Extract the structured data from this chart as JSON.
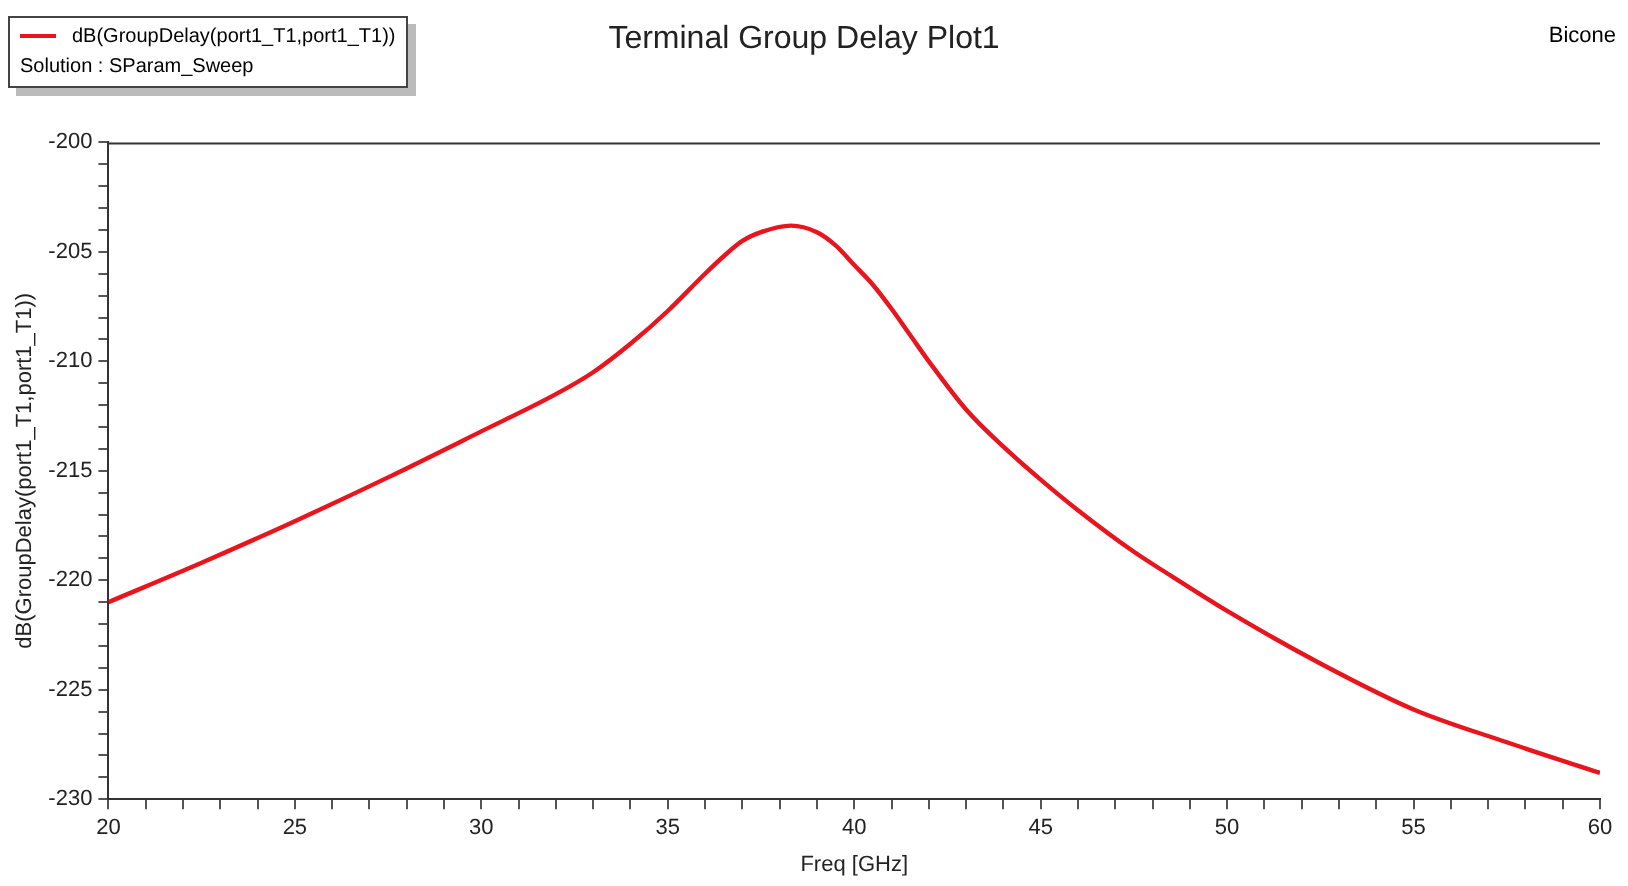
{
  "chart_data": {
    "type": "line",
    "title": "Terminal Group Delay Plot1",
    "xlabel": "Freq [GHz]",
    "ylabel": "dB(GroupDelay(port1_T1,port1_T1))",
    "annotations": [
      "Solution : SParam_Sweep",
      "Bicone"
    ],
    "legend": "top left",
    "grid": false,
    "marker": "none",
    "line_style": "solid",
    "xlim": [
      20,
      60
    ],
    "ylim": [
      -230,
      -200
    ],
    "xticks": [
      20,
      {
        "value": 21,
        "label": null
      },
      {
        "value": 22,
        "label": null
      },
      {
        "value": 23,
        "label": null
      },
      {
        "value": 24,
        "label": null
      },
      25,
      {
        "value": 26,
        "label": null
      },
      {
        "value": 27,
        "label": null
      },
      {
        "value": 28,
        "label": null
      },
      {
        "value": 29,
        "label": null
      },
      30,
      {
        "value": 31,
        "label": null
      },
      {
        "value": 32,
        "label": null
      },
      {
        "value": 33,
        "label": null
      },
      {
        "value": 34,
        "label": null
      },
      35,
      {
        "value": 36,
        "label": null
      },
      {
        "value": 37,
        "label": null
      },
      {
        "value": 38,
        "label": null
      },
      {
        "value": 39,
        "label": null
      },
      40,
      {
        "value": 41,
        "label": null
      },
      {
        "value": 42,
        "label": null
      },
      {
        "value": 43,
        "label": null
      },
      {
        "value": 44,
        "label": null
      },
      45,
      {
        "value": 46,
        "label": null
      },
      {
        "value": 47,
        "label": null
      },
      {
        "value": 48,
        "label": null
      },
      {
        "value": 49,
        "label": null
      },
      50,
      {
        "value": 51,
        "label": null
      },
      {
        "value": 52,
        "label": null
      },
      {
        "value": 53,
        "label": null
      },
      {
        "value": 54,
        "label": null
      },
      55,
      {
        "value": 56,
        "label": null
      },
      {
        "value": 57,
        "label": null
      },
      {
        "value": 58,
        "label": null
      },
      {
        "value": 59,
        "label": null
      },
      60
    ],
    "yticks": [
      -230,
      {
        "value": -229,
        "label": null
      },
      {
        "value": -228,
        "label": null
      },
      {
        "value": -227,
        "label": null
      },
      {
        "value": -226,
        "label": null
      },
      -225,
      {
        "value": -224,
        "label": null
      },
      {
        "value": -223,
        "label": null
      },
      {
        "value": -222,
        "label": null
      },
      {
        "value": -221,
        "label": null
      },
      -220,
      {
        "value": -219,
        "label": null
      },
      {
        "value": -218,
        "label": null
      },
      {
        "value": -217,
        "label": null
      },
      {
        "value": -216,
        "label": null
      },
      -215,
      {
        "value": -214,
        "label": null
      },
      {
        "value": -213,
        "label": null
      },
      {
        "value": -212,
        "label": null
      },
      {
        "value": -211,
        "label": null
      },
      -210,
      {
        "value": -209,
        "label": null
      },
      {
        "value": -208,
        "label": null
      },
      {
        "value": -207,
        "label": null
      },
      {
        "value": -206,
        "label": null
      },
      -205,
      {
        "value": -204,
        "label": null
      },
      {
        "value": -203,
        "label": null
      },
      {
        "value": -202,
        "label": null
      },
      {
        "value": -201,
        "label": null
      },
      -200
    ],
    "series": [
      {
        "name": "dB(GroupDelay(port1_T1,port1_T1))",
        "color": "#e8141e",
        "x": [
          20,
          22.5,
          25,
          27.5,
          30,
          32,
          33,
          34,
          35,
          36,
          36.5,
          37,
          37.5,
          38.3,
          39,
          39.5,
          40,
          40.5,
          41,
          41.5,
          42,
          43,
          44,
          45,
          46,
          47.5,
          48.5,
          50,
          52.5,
          55,
          57.5,
          60
        ],
        "values": [
          -221.0,
          -219.2,
          -217.3,
          -215.3,
          -213.2,
          -211.5,
          -210.5,
          -209.2,
          -207.7,
          -206.0,
          -205.2,
          -204.5,
          -204.1,
          -203.8,
          -204.1,
          -204.7,
          -205.6,
          -206.5,
          -207.6,
          -208.8,
          -210.0,
          -212.2,
          -213.9,
          -215.4,
          -216.8,
          -218.7,
          -219.8,
          -221.4,
          -223.8,
          -225.9,
          -227.4,
          -228.8
        ]
      }
    ]
  }
}
